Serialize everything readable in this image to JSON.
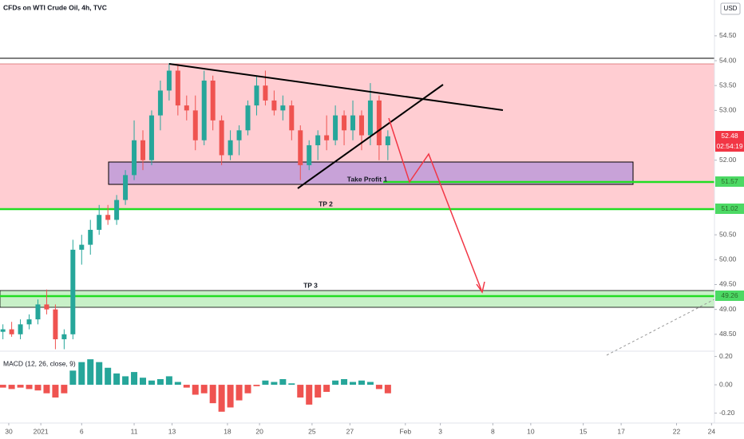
{
  "chart_data": [
    {
      "type": "candlestick",
      "title": "CFDs on WTI Crude Oil, 4h, TVC",
      "axis_unit": "USD",
      "up_color": "#26a69a",
      "down_color": "#ef5350",
      "x": [
        0,
        3,
        6,
        9,
        12,
        15,
        18,
        21,
        24,
        27,
        30,
        33,
        36,
        39,
        42,
        45,
        48,
        51,
        54,
        57,
        60,
        63,
        66,
        69,
        72,
        75,
        78,
        81,
        84,
        87,
        90,
        93,
        96,
        99,
        102,
        105,
        108,
        111,
        114,
        117,
        120,
        123,
        126,
        129,
        132
      ],
      "open": [
        48.55,
        48.6,
        48.5,
        48.7,
        48.8,
        49.1,
        49.0,
        48.4,
        48.5,
        50.2,
        50.3,
        50.6,
        50.9,
        50.8,
        51.2,
        51.7,
        52.4,
        52.0,
        52.9,
        53.4,
        53.8,
        53.1,
        53.0,
        52.4,
        53.6,
        52.8,
        52.1,
        52.4,
        52.6,
        53.1,
        53.5,
        53.2,
        53.0,
        53.1,
        52.6,
        51.9,
        52.3,
        52.5,
        52.4,
        52.9,
        52.6,
        52.9,
        52.5,
        53.2,
        52.3
      ],
      "high": [
        48.7,
        48.75,
        48.8,
        48.9,
        49.2,
        49.4,
        49.1,
        48.6,
        50.4,
        50.5,
        50.8,
        51.1,
        51.1,
        51.3,
        51.8,
        52.8,
        52.6,
        53.0,
        53.6,
        53.95,
        53.9,
        53.3,
        53.3,
        53.8,
        53.7,
        52.9,
        52.6,
        52.7,
        53.2,
        53.7,
        53.8,
        53.4,
        53.3,
        53.2,
        52.7,
        52.4,
        52.6,
        52.9,
        53.1,
        53.0,
        53.2,
        53.0,
        53.55,
        53.3,
        52.6
      ],
      "low": [
        48.4,
        48.45,
        48.4,
        48.6,
        48.7,
        48.9,
        48.2,
        48.2,
        48.4,
        49.9,
        50.1,
        50.5,
        50.7,
        50.7,
        51.1,
        51.6,
        51.8,
        51.9,
        52.6,
        53.2,
        52.9,
        52.8,
        52.2,
        52.3,
        52.6,
        51.9,
        52.0,
        52.1,
        52.5,
        52.9,
        53.1,
        52.9,
        52.8,
        52.4,
        51.6,
        51.8,
        52.0,
        52.2,
        52.3,
        52.3,
        52.4,
        52.2,
        52.3,
        52.0,
        52.0
      ],
      "close": [
        48.6,
        48.5,
        48.7,
        48.8,
        49.1,
        49.0,
        48.4,
        48.5,
        50.2,
        50.3,
        50.6,
        50.9,
        50.8,
        51.2,
        51.7,
        52.4,
        52.0,
        52.9,
        53.4,
        53.8,
        53.1,
        53.0,
        52.4,
        53.6,
        52.8,
        52.1,
        52.4,
        52.6,
        53.1,
        53.5,
        53.2,
        53.0,
        53.1,
        52.6,
        51.9,
        52.3,
        52.5,
        52.4,
        52.9,
        52.6,
        52.9,
        52.5,
        53.2,
        52.3,
        52.48
      ],
      "xlim": [
        -1,
        244
      ],
      "ylim": [
        48.16,
        55.22
      ],
      "yticks": [
        {
          "value": 54.5,
          "label": "54.50"
        },
        {
          "value": 54,
          "label": "54.00"
        },
        {
          "value": 53.5,
          "label": "53.50"
        },
        {
          "value": 53,
          "label": "53.00"
        },
        {
          "value": 52,
          "label": "52.00"
        },
        {
          "value": 50.5,
          "label": "50.50"
        },
        {
          "value": 50,
          "label": "50.00"
        },
        {
          "value": 49.5,
          "label": "49.50"
        },
        {
          "value": 49,
          "label": "49.00"
        },
        {
          "value": 48.5,
          "label": "48.50"
        }
      ],
      "xticks": [
        {
          "value": 2,
          "label": "30"
        },
        {
          "value": 13,
          "label": "2021"
        },
        {
          "value": 27,
          "label": "6"
        },
        {
          "value": 45,
          "label": "11"
        },
        {
          "value": 58,
          "label": "13"
        },
        {
          "value": 77,
          "label": "18"
        },
        {
          "value": 88,
          "label": "20"
        },
        {
          "value": 106,
          "label": "25"
        },
        {
          "value": 119,
          "label": "27"
        },
        {
          "value": 138,
          "label": "Feb"
        },
        {
          "value": 150,
          "label": "3"
        },
        {
          "value": 168,
          "label": "8"
        },
        {
          "value": 181,
          "label": "10"
        },
        {
          "value": 199,
          "label": "15"
        },
        {
          "value": 212,
          "label": "17"
        },
        {
          "value": 231,
          "label": "22"
        },
        {
          "value": 243,
          "label": "24"
        }
      ]
    },
    {
      "type": "bar",
      "title": "MACD (12, 26, close, 9)",
      "up_color": "#26a69a",
      "down_color": "#ef5350",
      "x": [
        0,
        3,
        6,
        9,
        12,
        15,
        18,
        21,
        24,
        27,
        30,
        33,
        36,
        39,
        42,
        45,
        48,
        51,
        54,
        57,
        60,
        63,
        66,
        69,
        72,
        75,
        78,
        81,
        84,
        87,
        90,
        93,
        96,
        99,
        102,
        105,
        108,
        111,
        114,
        117,
        120,
        123,
        126,
        129,
        132
      ],
      "values": [
        -0.02,
        -0.03,
        -0.02,
        -0.03,
        -0.04,
        -0.06,
        -0.09,
        -0.06,
        0.1,
        0.16,
        0.18,
        0.16,
        0.12,
        0.08,
        0.06,
        0.09,
        0.05,
        0.03,
        0.04,
        0.06,
        0.02,
        -0.02,
        -0.07,
        -0.06,
        -0.13,
        -0.19,
        -0.16,
        -0.11,
        -0.06,
        -0.01,
        0.03,
        0.02,
        0.04,
        0.01,
        -0.09,
        -0.14,
        -0.09,
        -0.05,
        0.03,
        0.04,
        0.02,
        0.03,
        0.02,
        -0.03,
        -0.06
      ],
      "xlim": [
        -1,
        244
      ],
      "ylim": [
        -0.27,
        0.237
      ],
      "yticks": [
        {
          "value": 0.2,
          "label": "0.20"
        },
        {
          "value": 0,
          "label": "0.00"
        },
        {
          "value": -0.2,
          "label": "-0.20"
        }
      ]
    }
  ],
  "annotations": {
    "tp1": "Take Profit 1",
    "tp2": "TP 2",
    "tp3": "TP 3"
  },
  "price_tags": {
    "last": "52.48",
    "countdown": "02:54:19",
    "tp1": "51.57",
    "tp2": "51.02",
    "tp3": "49.26"
  }
}
